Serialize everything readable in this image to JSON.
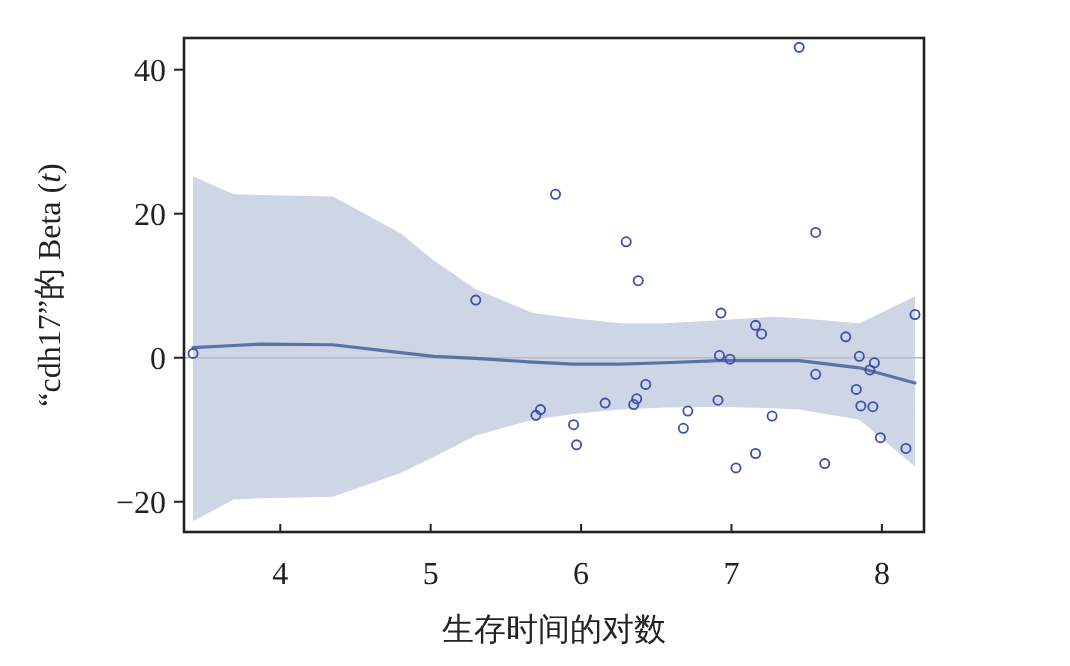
{
  "chart_data": {
    "type": "scatter",
    "xlabel": "生存时间的对数",
    "ylabel": "“cdh17”的 Beta (*t*)",
    "xlim": [
      3.36,
      8.28
    ],
    "ylim": [
      -24.2,
      44.4
    ],
    "xticks": [
      4,
      5,
      6,
      7,
      8
    ],
    "yticks": [
      -20,
      0,
      20,
      40
    ],
    "grid": false,
    "ref_lines": [
      {
        "axis": "y",
        "value": 0,
        "color": "#b4bcc8"
      }
    ],
    "series": [
      {
        "type": "line",
        "color": "#5a72a8",
        "marker": "none",
        "x": [
          3.42,
          3.69,
          3.87,
          4.35,
          4.8,
          5.02,
          5.3,
          5.68,
          5.95,
          6.26,
          6.56,
          6.92,
          7.28,
          7.45,
          7.85,
          8.22
        ],
        "values": [
          1.4,
          1.7,
          1.9,
          1.8,
          0.7,
          0.2,
          -0.1,
          -0.6,
          -0.9,
          -0.9,
          -0.7,
          -0.4,
          -0.4,
          -0.4,
          -1.4,
          -3.5
        ],
        "upper": [
          25.2,
          22.7,
          22.6,
          22.4,
          17.3,
          13.5,
          9.5,
          6.2,
          5.5,
          4.8,
          4.8,
          5.2,
          5.7,
          5.5,
          4.8,
          8.5
        ],
        "lower": [
          -22.7,
          -19.7,
          -19.5,
          -19.3,
          -16.0,
          -13.8,
          -10.8,
          -8.6,
          -7.8,
          -7.2,
          -6.9,
          -6.8,
          -7.0,
          -7.2,
          -8.6,
          -15.1
        ]
      },
      {
        "color": "#3a4fb0",
        "marker": "circle",
        "x": [
          3.42,
          5.83,
          5.3,
          5.7,
          5.73,
          5.95,
          5.97,
          6.16,
          7.45,
          6.3,
          6.38,
          7.56,
          6.93,
          7.16,
          7.2,
          7.76,
          8.22,
          6.92,
          6.99,
          7.85,
          7.95,
          7.92,
          7.56,
          6.43,
          6.35,
          6.37,
          6.91,
          6.71,
          6.68,
          7.83,
          7.86,
          7.94,
          7.27,
          7.99,
          8.16,
          7.16,
          7.03,
          7.62
        ],
        "values": [
          0.6,
          22.7,
          8.0,
          -8.0,
          -7.2,
          -9.3,
          -12.1,
          -6.3,
          43.1,
          16.1,
          10.7,
          17.4,
          6.2,
          4.5,
          3.3,
          2.9,
          6.0,
          0.3,
          -0.2,
          0.2,
          -0.7,
          -1.7,
          -2.3,
          -3.7,
          -6.5,
          -5.7,
          -5.9,
          -7.4,
          -9.8,
          -4.4,
          -6.7,
          -6.8,
          -8.1,
          -11.1,
          -12.6,
          -13.3,
          -15.3,
          -14.7
        ]
      }
    ]
  }
}
